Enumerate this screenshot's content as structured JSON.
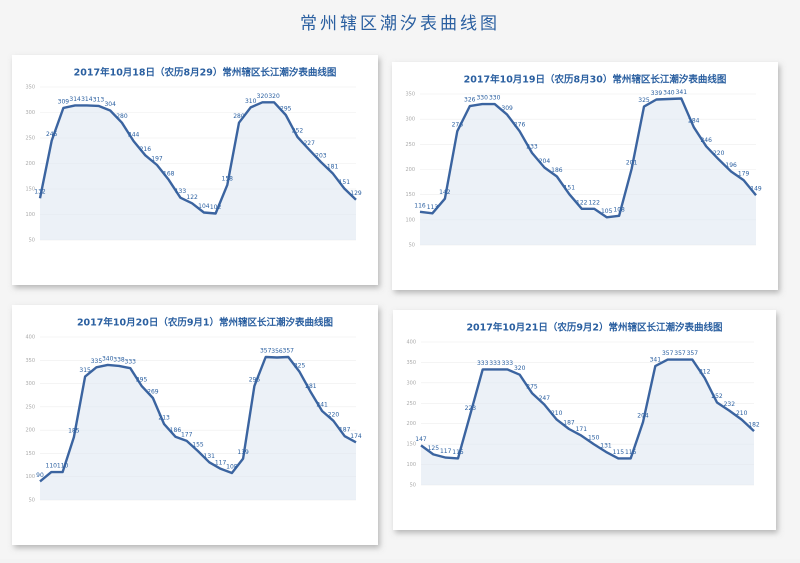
{
  "title": "常州辖区潮汐表曲线图",
  "chart_data": [
    {
      "type": "line",
      "title": "2017年10月18日（农历8月29）常州辖区长江潮汐表曲线图",
      "color": "#3b64a0",
      "categories": [
        null,
        null,
        null,
        null,
        null,
        null,
        null,
        null,
        null,
        null,
        null,
        null,
        null,
        null,
        null,
        null,
        null,
        null,
        null,
        null,
        null,
        null,
        null,
        null,
        null,
        null,
        null,
        null
      ],
      "values": [
        132,
        245,
        309,
        314,
        314,
        313,
        304,
        280,
        244,
        216,
        197,
        168,
        133,
        122,
        104,
        102,
        158,
        280,
        310,
        320,
        320,
        295,
        252,
        227,
        203,
        181,
        151,
        129
      ],
      "ylim": [
        50,
        350
      ],
      "yticks": [
        50,
        100,
        150,
        200,
        250,
        300,
        350
      ],
      "grid": true
    },
    {
      "type": "line",
      "title": "2017年10月19日（农历8月30）常州辖区长江潮汐表曲线图",
      "color": "#3b64a0",
      "categories": [
        null,
        null,
        null,
        null,
        null,
        null,
        null,
        null,
        null,
        null,
        null,
        null,
        null,
        null,
        null,
        null,
        null,
        null,
        null,
        null,
        null,
        null,
        null,
        null,
        null,
        null,
        null,
        null
      ],
      "values": [
        116,
        113,
        142,
        276,
        326,
        330,
        330,
        309,
        276,
        233,
        204,
        186,
        151,
        122,
        122,
        105,
        108,
        201,
        325,
        339,
        340,
        341,
        284,
        246,
        220,
        196,
        179,
        149
      ],
      "ylim": [
        50,
        350
      ],
      "yticks": [
        50,
        100,
        150,
        200,
        250,
        300,
        350
      ],
      "grid": true
    },
    {
      "type": "line",
      "title": "2017年10月20日（农历9月1）常州辖区长江潮汐表曲线图",
      "color": "#3b64a0",
      "categories": [
        null,
        null,
        null,
        null,
        null,
        null,
        null,
        null,
        null,
        null,
        null,
        null,
        null,
        null,
        null,
        null,
        null,
        null,
        null,
        null,
        null,
        null,
        null,
        null,
        null,
        null,
        null,
        null,
        null
      ],
      "values": [
        90,
        110,
        110,
        185,
        315,
        335,
        340,
        338,
        333,
        295,
        269,
        213,
        186,
        177,
        155,
        131,
        117,
        108,
        139,
        295,
        357,
        356,
        357,
        325,
        281,
        241,
        220,
        187,
        174
      ],
      "ylim": [
        50,
        400
      ],
      "yticks": [
        50,
        100,
        150,
        200,
        250,
        300,
        350,
        400
      ],
      "grid": true
    },
    {
      "type": "line",
      "title": "2017年10月21日（农历9月2）常州辖区长江潮汐表曲线图",
      "color": "#3b64a0",
      "categories": [
        null,
        null,
        null,
        null,
        null,
        null,
        null,
        null,
        null,
        null,
        null,
        null,
        null,
        null,
        null,
        null,
        null,
        null,
        null,
        null,
        null,
        null,
        null,
        null,
        null,
        null,
        null,
        null
      ],
      "values": [
        147,
        125,
        117,
        115,
        223,
        333,
        333,
        333,
        320,
        275,
        247,
        210,
        187,
        171,
        150,
        131,
        115,
        115,
        204,
        341,
        357,
        357,
        357,
        312,
        252,
        232,
        210,
        182
      ],
      "ylim": [
        50,
        400
      ],
      "yticks": [
        50,
        100,
        150,
        200,
        250,
        300,
        350,
        400
      ],
      "grid": true
    }
  ]
}
